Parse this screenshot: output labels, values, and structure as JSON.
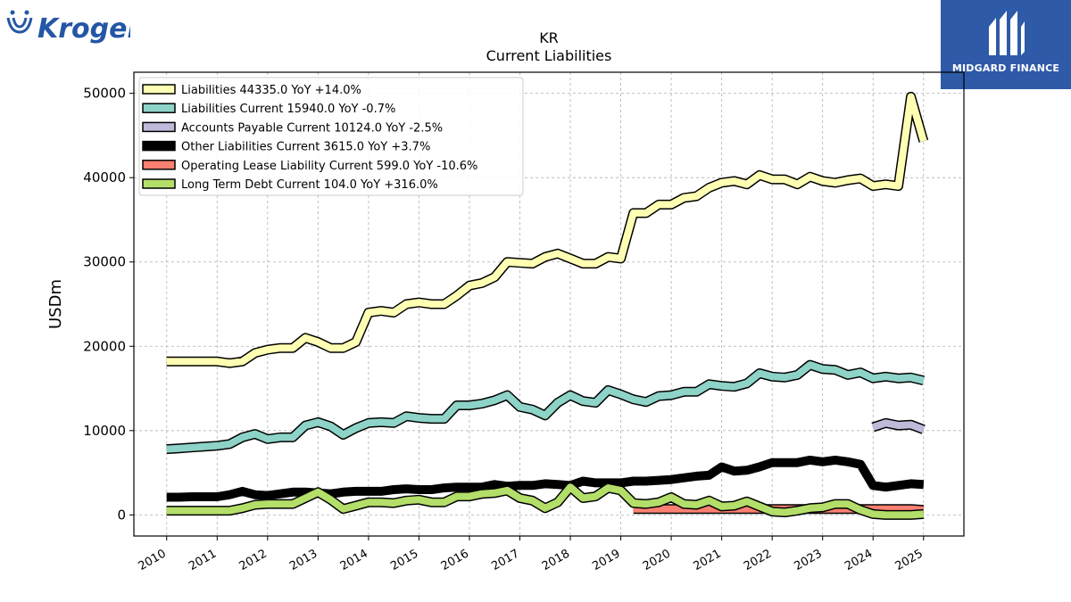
{
  "logos": {
    "left_brand": "Kroger",
    "right_brand": "MIDGARD FINANCE"
  },
  "chart_data": {
    "type": "line",
    "title": "KR",
    "subtitle": "Current  Liabilities",
    "ylabel": "USDm",
    "xlabel": "",
    "ylim": [
      -2500,
      52500
    ],
    "xlim": [
      2009.35,
      2025.8
    ],
    "yticks": [
      0,
      10000,
      20000,
      30000,
      40000,
      50000
    ],
    "xticks": [
      "2010",
      "2011",
      "2012",
      "2013",
      "2014",
      "2015",
      "2016",
      "2017",
      "2018",
      "2019",
      "2020",
      "2021",
      "2022",
      "2023",
      "2024",
      "2025"
    ],
    "grid": true,
    "legend_position": "top-left",
    "series": [
      {
        "name": "Liabilities  44335.0 YoY +14.0%",
        "color": "#ffffb3",
        "width": 8,
        "x": [
          2010.0,
          2010.25,
          2010.5,
          2010.75,
          2011.0,
          2011.25,
          2011.5,
          2011.75,
          2012.0,
          2012.25,
          2012.5,
          2012.75,
          2013.0,
          2013.25,
          2013.5,
          2013.75,
          2014.0,
          2014.25,
          2014.5,
          2014.75,
          2015.0,
          2015.25,
          2015.5,
          2015.75,
          2016.0,
          2016.25,
          2016.5,
          2016.75,
          2017.0,
          2017.25,
          2017.5,
          2017.75,
          2018.0,
          2018.25,
          2018.5,
          2018.75,
          2019.0,
          2019.25,
          2019.5,
          2019.75,
          2020.0,
          2020.25,
          2020.5,
          2020.75,
          2021.0,
          2021.25,
          2021.5,
          2021.75,
          2022.0,
          2022.25,
          2022.5,
          2022.75,
          2023.0,
          2023.25,
          2023.5,
          2023.75,
          2024.0,
          2024.25,
          2024.5,
          2024.75,
          2025.0
        ],
        "values": [
          18200,
          18200,
          18200,
          18200,
          18200,
          18000,
          18200,
          19200,
          19600,
          19800,
          19800,
          21000,
          20500,
          19800,
          19800,
          20500,
          24000,
          24200,
          24000,
          25000,
          25200,
          25000,
          25000,
          26000,
          27200,
          27500,
          28200,
          30000,
          29900,
          29800,
          30600,
          31000,
          30400,
          29800,
          29800,
          30600,
          30400,
          35800,
          35800,
          36800,
          36800,
          37600,
          37800,
          38800,
          39400,
          39600,
          39200,
          40300,
          39800,
          39800,
          39200,
          40100,
          39600,
          39400,
          39700,
          39900,
          39000,
          39200,
          39000,
          49600,
          44335
        ]
      },
      {
        "name": "Liabilities Current  15940.0 YoY -0.7%",
        "color": "#8dd3c7",
        "width": 8,
        "x": [
          2010.0,
          2010.25,
          2010.5,
          2010.75,
          2011.0,
          2011.25,
          2011.5,
          2011.75,
          2012.0,
          2012.25,
          2012.5,
          2012.75,
          2013.0,
          2013.25,
          2013.5,
          2013.75,
          2014.0,
          2014.25,
          2014.5,
          2014.75,
          2015.0,
          2015.25,
          2015.5,
          2015.75,
          2016.0,
          2016.25,
          2016.5,
          2016.75,
          2017.0,
          2017.25,
          2017.5,
          2017.75,
          2018.0,
          2018.25,
          2018.5,
          2018.75,
          2019.0,
          2019.25,
          2019.5,
          2019.75,
          2020.0,
          2020.25,
          2020.5,
          2020.75,
          2021.0,
          2021.25,
          2021.5,
          2021.75,
          2022.0,
          2022.25,
          2022.5,
          2022.75,
          2023.0,
          2023.25,
          2023.5,
          2023.75,
          2024.0,
          2024.25,
          2024.5,
          2024.75,
          2025.0
        ],
        "values": [
          7800,
          7900,
          8000,
          8100,
          8200,
          8400,
          9200,
          9600,
          9000,
          9200,
          9200,
          10600,
          11000,
          10500,
          9500,
          10300,
          10900,
          11000,
          10900,
          11700,
          11500,
          11400,
          11400,
          13000,
          13000,
          13200,
          13600,
          14200,
          12800,
          12500,
          11800,
          13300,
          14200,
          13500,
          13300,
          14800,
          14300,
          13700,
          13400,
          14100,
          14200,
          14600,
          14600,
          15500,
          15300,
          15200,
          15600,
          16800,
          16400,
          16300,
          16600,
          17800,
          17300,
          17200,
          16600,
          16900,
          16200,
          16400,
          16200,
          16300,
          15940
        ]
      },
      {
        "name": "Accounts Payable Current  10124.0 YoY -2.5%",
        "color": "#bebada",
        "width": 8,
        "x": [
          2024.0,
          2024.25,
          2024.5,
          2024.75,
          2025.0
        ],
        "values": [
          10400,
          10900,
          10600,
          10700,
          10124
        ]
      },
      {
        "name": "Other Liabilities Current  3615.0 YoY +3.7%",
        "color": "#000000",
        "width": 10,
        "x": [
          2010.0,
          2010.25,
          2010.5,
          2010.75,
          2011.0,
          2011.25,
          2011.5,
          2011.75,
          2012.0,
          2012.25,
          2012.5,
          2012.75,
          2013.0,
          2013.25,
          2013.5,
          2013.75,
          2014.0,
          2014.25,
          2014.5,
          2014.75,
          2015.0,
          2015.25,
          2015.5,
          2015.75,
          2016.0,
          2016.25,
          2016.5,
          2016.75,
          2017.0,
          2017.25,
          2017.5,
          2017.75,
          2018.0,
          2018.25,
          2018.5,
          2018.75,
          2019.0,
          2019.25,
          2019.5,
          2019.75,
          2020.0,
          2020.25,
          2020.5,
          2020.75,
          2021.0,
          2021.25,
          2021.5,
          2021.75,
          2022.0,
          2022.25,
          2022.5,
          2022.75,
          2023.0,
          2023.25,
          2023.5,
          2023.75,
          2024.0,
          2024.25,
          2024.5,
          2024.75,
          2025.0
        ],
        "values": [
          2100,
          2100,
          2150,
          2150,
          2150,
          2400,
          2800,
          2400,
          2300,
          2500,
          2700,
          2700,
          2600,
          2500,
          2700,
          2800,
          2800,
          2800,
          3000,
          3100,
          3000,
          3000,
          3200,
          3300,
          3300,
          3300,
          3600,
          3400,
          3500,
          3500,
          3700,
          3600,
          3500,
          4000,
          3800,
          3800,
          3800,
          4000,
          4000,
          4100,
          4200,
          4400,
          4600,
          4700,
          5700,
          5200,
          5300,
          5700,
          6200,
          6200,
          6200,
          6500,
          6300,
          6500,
          6300,
          6000,
          3500,
          3300,
          3500,
          3700,
          3615
        ]
      },
      {
        "name": "Operating Lease Liability Current  599.0 YoY -10.6%",
        "color": "#fb8072",
        "width": 8,
        "x": [
          2019.25,
          2019.5,
          2019.75,
          2020.0,
          2020.25,
          2020.5,
          2020.75,
          2021.0,
          2021.25,
          2021.5,
          2021.75,
          2022.0,
          2022.25,
          2022.5,
          2022.75,
          2023.0,
          2023.25,
          2023.5,
          2023.75,
          2024.0,
          2024.25,
          2024.5,
          2024.75,
          2025.0
        ],
        "values": [
          700,
          700,
          700,
          700,
          700,
          700,
          700,
          700,
          700,
          700,
          700,
          700,
          700,
          700,
          700,
          700,
          700,
          700,
          700,
          700,
          700,
          700,
          700,
          599
        ]
      },
      {
        "name": "Long Term Debt Current  104.0 YoY +316.0%",
        "color": "#b3de69",
        "width": 8,
        "x": [
          2010.0,
          2010.25,
          2010.5,
          2010.75,
          2011.0,
          2011.25,
          2011.5,
          2011.75,
          2012.0,
          2012.25,
          2012.5,
          2012.75,
          2013.0,
          2013.25,
          2013.5,
          2013.75,
          2014.0,
          2014.25,
          2014.5,
          2014.75,
          2015.0,
          2015.25,
          2015.5,
          2015.75,
          2016.0,
          2016.25,
          2016.5,
          2016.75,
          2017.0,
          2017.25,
          2017.5,
          2017.75,
          2018.0,
          2018.25,
          2018.5,
          2018.75,
          2019.0,
          2019.25,
          2019.5,
          2019.75,
          2020.0,
          2020.25,
          2020.5,
          2020.75,
          2021.0,
          2021.25,
          2021.5,
          2021.75,
          2022.0,
          2022.25,
          2022.5,
          2022.75,
          2023.0,
          2023.25,
          2023.5,
          2023.75,
          2024.0,
          2024.25,
          2024.5,
          2024.75,
          2025.0
        ],
        "values": [
          500,
          500,
          500,
          500,
          500,
          500,
          800,
          1200,
          1300,
          1300,
          1300,
          2000,
          2700,
          1800,
          700,
          1100,
          1500,
          1500,
          1400,
          1700,
          1800,
          1500,
          1500,
          2200,
          2200,
          2500,
          2600,
          2900,
          2000,
          1700,
          800,
          1500,
          3300,
          2000,
          2200,
          3200,
          2900,
          1400,
          1300,
          1500,
          2100,
          1300,
          1200,
          1700,
          1000,
          1100,
          1600,
          1000,
          400,
          300,
          500,
          800,
          900,
          1300,
          1300,
          600,
          100,
          0,
          0,
          0,
          104
        ]
      }
    ]
  }
}
